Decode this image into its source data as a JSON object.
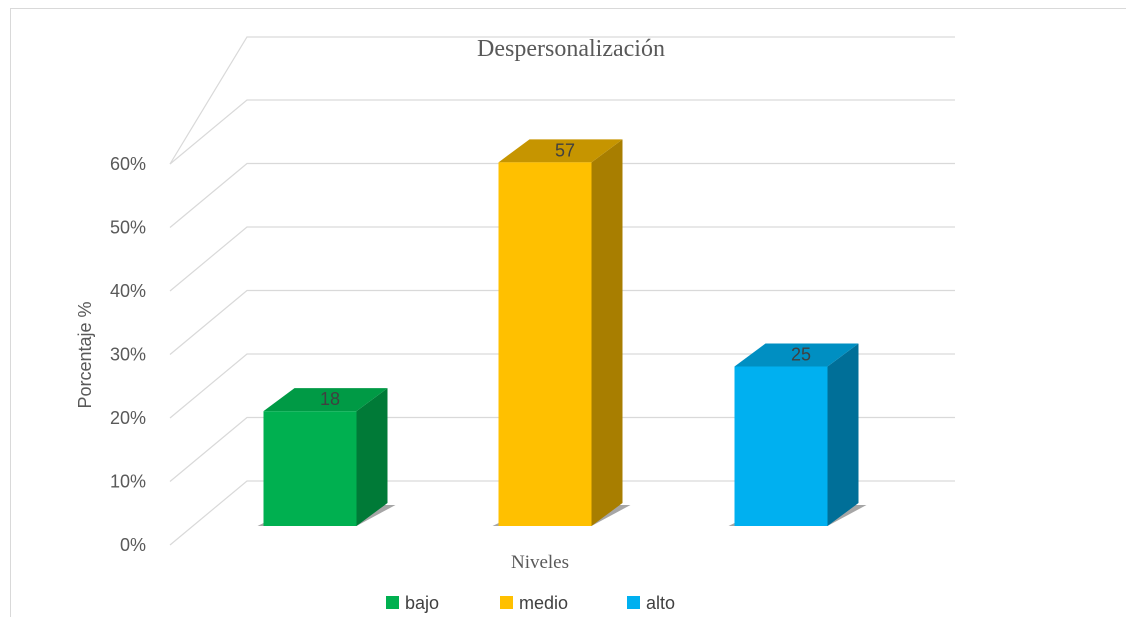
{
  "chart_data": {
    "type": "bar",
    "title": "Despersonalización",
    "xlabel": "Niveles",
    "ylabel": "Porcentaje %",
    "categories": [
      "bajo",
      "medio",
      "alto"
    ],
    "values": [
      18,
      57,
      25
    ],
    "data_labels": [
      "18",
      "57",
      "25"
    ],
    "ylim": [
      0,
      60
    ],
    "yticks": [
      "0%",
      "10%",
      "20%",
      "30%",
      "40%",
      "50%",
      "60%"
    ],
    "ytick_values": [
      0,
      10,
      20,
      30,
      40,
      50,
      60
    ],
    "grid": true,
    "legend_position": "bottom",
    "style": "3d-column",
    "colors": {
      "bajo": {
        "front": "#00b050",
        "side": "#007a37",
        "top": "#009a45"
      },
      "medio": {
        "front": "#ffc000",
        "side": "#a87e00",
        "top": "#c69500"
      },
      "alto": {
        "front": "#00b0f0",
        "side": "#006f98",
        "top": "#008fc2"
      }
    }
  }
}
